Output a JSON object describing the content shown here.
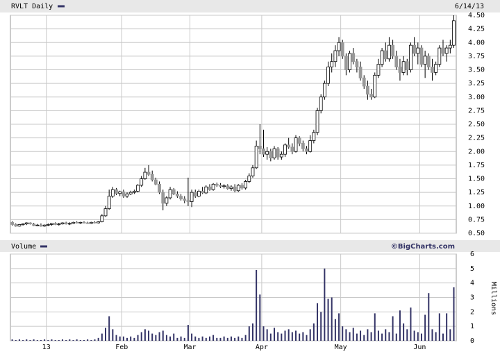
{
  "chart_data": [
    {
      "type": "candlestick",
      "title": "RVLT Daily",
      "date_label": "6/14/13",
      "up_color": "#ffffff",
      "down_color": "#999999",
      "edge_color": "#000000",
      "legend_color": "#333366",
      "ylim": [
        0.5,
        4.5
      ],
      "yticks": [
        {
          "value": 0.5,
          "label": "0.50"
        },
        {
          "value": 0.75,
          "label": "0.75"
        },
        {
          "value": 1,
          "label": "1.00"
        },
        {
          "value": 1.25,
          "label": "1.25"
        },
        {
          "value": 1.5,
          "label": "1.50"
        },
        {
          "value": 1.75,
          "label": "1.75"
        },
        {
          "value": 2,
          "label": "2.00"
        },
        {
          "value": 2.25,
          "label": "2.25"
        },
        {
          "value": 2.5,
          "label": "2.50"
        },
        {
          "value": 2.75,
          "label": "2.75"
        },
        {
          "value": 3,
          "label": "3.00"
        },
        {
          "value": 3.25,
          "label": "3.25"
        },
        {
          "value": 3.5,
          "label": "3.50"
        },
        {
          "value": 3.75,
          "label": "3.75"
        },
        {
          "value": 4,
          "label": "4.00"
        },
        {
          "value": 4.25,
          "label": "4.25"
        },
        {
          "value": 4.5,
          "label": "4.50"
        }
      ],
      "xticks": [
        10,
        31,
        50,
        70,
        92,
        114
      ],
      "grid": true,
      "ohlc": [
        [
          0.7,
          0.72,
          0.64,
          0.66
        ],
        [
          0.66,
          0.68,
          0.62,
          0.63
        ],
        [
          0.63,
          0.67,
          0.62,
          0.66
        ],
        [
          0.66,
          0.68,
          0.64,
          0.67
        ],
        [
          0.67,
          0.7,
          0.65,
          0.69
        ],
        [
          0.69,
          0.7,
          0.66,
          0.67
        ],
        [
          0.67,
          0.69,
          0.63,
          0.64
        ],
        [
          0.64,
          0.67,
          0.63,
          0.65
        ],
        [
          0.65,
          0.68,
          0.62,
          0.63
        ],
        [
          0.63,
          0.66,
          0.62,
          0.65
        ],
        [
          0.65,
          0.68,
          0.63,
          0.66
        ],
        [
          0.66,
          0.69,
          0.64,
          0.68
        ],
        [
          0.68,
          0.7,
          0.65,
          0.66
        ],
        [
          0.66,
          0.69,
          0.64,
          0.67
        ],
        [
          0.67,
          0.7,
          0.66,
          0.69
        ],
        [
          0.69,
          0.71,
          0.66,
          0.67
        ],
        [
          0.67,
          0.7,
          0.65,
          0.68
        ],
        [
          0.68,
          0.71,
          0.67,
          0.7
        ],
        [
          0.7,
          0.72,
          0.68,
          0.69
        ],
        [
          0.69,
          0.71,
          0.67,
          0.7
        ],
        [
          0.7,
          0.72,
          0.68,
          0.69
        ],
        [
          0.69,
          0.71,
          0.67,
          0.68
        ],
        [
          0.68,
          0.71,
          0.67,
          0.7
        ],
        [
          0.7,
          0.72,
          0.68,
          0.69
        ],
        [
          0.69,
          0.72,
          0.68,
          0.71
        ],
        [
          0.71,
          0.85,
          0.7,
          0.82
        ],
        [
          0.82,
          1.0,
          0.8,
          0.95
        ],
        [
          0.95,
          1.3,
          0.93,
          1.18
        ],
        [
          1.18,
          1.35,
          1.15,
          1.3
        ],
        [
          1.3,
          1.33,
          1.2,
          1.23
        ],
        [
          1.23,
          1.28,
          1.18,
          1.26
        ],
        [
          1.26,
          1.3,
          1.15,
          1.18
        ],
        [
          1.18,
          1.25,
          1.15,
          1.22
        ],
        [
          1.22,
          1.28,
          1.2,
          1.25
        ],
        [
          1.25,
          1.3,
          1.22,
          1.27
        ],
        [
          1.27,
          1.4,
          1.25,
          1.38
        ],
        [
          1.38,
          1.55,
          1.35,
          1.5
        ],
        [
          1.5,
          1.7,
          1.48,
          1.62
        ],
        [
          1.62,
          1.75,
          1.55,
          1.58
        ],
        [
          1.58,
          1.65,
          1.45,
          1.48
        ],
        [
          1.48,
          1.52,
          1.38,
          1.4
        ],
        [
          1.4,
          1.45,
          1.22,
          1.25
        ],
        [
          1.25,
          1.3,
          0.92,
          1.05
        ],
        [
          1.05,
          1.18,
          1.0,
          1.15
        ],
        [
          1.15,
          1.35,
          1.12,
          1.3
        ],
        [
          1.3,
          1.33,
          1.2,
          1.22
        ],
        [
          1.22,
          1.27,
          1.15,
          1.18
        ],
        [
          1.18,
          1.22,
          1.1,
          1.13
        ],
        [
          1.13,
          1.18,
          1.05,
          1.1
        ],
        [
          1.1,
          1.52,
          1.0,
          1.08
        ],
        [
          1.08,
          1.3,
          0.98,
          1.25
        ],
        [
          1.25,
          1.3,
          1.15,
          1.18
        ],
        [
          1.18,
          1.3,
          1.16,
          1.27
        ],
        [
          1.27,
          1.35,
          1.22,
          1.24
        ],
        [
          1.24,
          1.38,
          1.22,
          1.35
        ],
        [
          1.35,
          1.4,
          1.28,
          1.3
        ],
        [
          1.3,
          1.42,
          1.28,
          1.4
        ],
        [
          1.4,
          1.43,
          1.35,
          1.38
        ],
        [
          1.38,
          1.42,
          1.33,
          1.36
        ],
        [
          1.36,
          1.4,
          1.32,
          1.37
        ],
        [
          1.37,
          1.4,
          1.3,
          1.32
        ],
        [
          1.32,
          1.38,
          1.28,
          1.35
        ],
        [
          1.35,
          1.4,
          1.25,
          1.28
        ],
        [
          1.28,
          1.4,
          1.26,
          1.38
        ],
        [
          1.38,
          1.42,
          1.3,
          1.33
        ],
        [
          1.33,
          1.48,
          1.3,
          1.45
        ],
        [
          1.45,
          1.6,
          1.42,
          1.55
        ],
        [
          1.55,
          1.75,
          1.52,
          1.7
        ],
        [
          1.7,
          2.2,
          1.68,
          2.1
        ],
        [
          2.1,
          2.5,
          1.95,
          2.05
        ],
        [
          2.05,
          2.4,
          1.9,
          1.95
        ],
        [
          1.95,
          2.08,
          1.85,
          2.0
        ],
        [
          2.0,
          2.05,
          1.82,
          1.88
        ],
        [
          1.88,
          2.1,
          1.85,
          2.05
        ],
        [
          2.05,
          2.08,
          1.85,
          1.9
        ],
        [
          1.9,
          2.0,
          1.85,
          1.95
        ],
        [
          1.95,
          2.15,
          1.9,
          2.12
        ],
        [
          2.12,
          2.25,
          2.05,
          2.08
        ],
        [
          2.08,
          2.15,
          1.95,
          2.0
        ],
        [
          2.0,
          2.3,
          1.98,
          2.25
        ],
        [
          2.25,
          2.28,
          2.1,
          2.15
        ],
        [
          2.15,
          2.2,
          2.0,
          2.05
        ],
        [
          2.05,
          2.1,
          1.95,
          2.0
        ],
        [
          2.0,
          2.3,
          1.98,
          2.2
        ],
        [
          2.2,
          2.4,
          2.15,
          2.35
        ],
        [
          2.35,
          2.8,
          2.3,
          2.75
        ],
        [
          2.75,
          3.05,
          2.7,
          3.0
        ],
        [
          3.0,
          3.3,
          2.95,
          3.25
        ],
        [
          3.25,
          3.65,
          3.2,
          3.55
        ],
        [
          3.55,
          3.8,
          3.45,
          3.65
        ],
        [
          3.65,
          3.95,
          3.55,
          3.85
        ],
        [
          3.85,
          4.1,
          3.75,
          4.0
        ],
        [
          4.0,
          4.05,
          3.7,
          3.75
        ],
        [
          3.75,
          3.8,
          3.4,
          3.5
        ],
        [
          3.5,
          3.85,
          3.45,
          3.8
        ],
        [
          3.8,
          3.9,
          3.6,
          3.65
        ],
        [
          3.65,
          3.7,
          3.45,
          3.55
        ],
        [
          3.55,
          3.65,
          3.3,
          3.35
        ],
        [
          3.35,
          3.4,
          3.15,
          3.2
        ],
        [
          3.2,
          3.3,
          2.95,
          3.05
        ],
        [
          3.05,
          3.15,
          2.95,
          3.0
        ],
        [
          3.0,
          3.45,
          2.98,
          3.4
        ],
        [
          3.4,
          3.7,
          3.35,
          3.6
        ],
        [
          3.6,
          3.9,
          3.55,
          3.85
        ],
        [
          3.85,
          4.0,
          3.65,
          3.7
        ],
        [
          3.7,
          4.1,
          3.65,
          3.95
        ],
        [
          3.95,
          4.05,
          3.7,
          3.75
        ],
        [
          3.75,
          3.85,
          3.5,
          3.55
        ],
        [
          3.55,
          3.7,
          3.3,
          3.45
        ],
        [
          3.45,
          3.75,
          3.4,
          3.65
        ],
        [
          3.65,
          3.7,
          3.4,
          3.5
        ],
        [
          3.5,
          4.0,
          3.45,
          3.95
        ],
        [
          3.95,
          4.1,
          3.75,
          3.8
        ],
        [
          3.8,
          4.0,
          3.6,
          3.9
        ],
        [
          3.9,
          3.95,
          3.55,
          3.6
        ],
        [
          3.6,
          3.85,
          3.35,
          3.75
        ],
        [
          3.75,
          3.8,
          3.5,
          3.55
        ],
        [
          3.55,
          3.7,
          3.3,
          3.45
        ],
        [
          3.45,
          3.65,
          3.4,
          3.6
        ],
        [
          3.6,
          3.95,
          3.55,
          3.9
        ],
        [
          3.9,
          4.05,
          3.75,
          3.8
        ],
        [
          3.8,
          3.95,
          3.65,
          3.9
        ],
        [
          3.9,
          4.05,
          3.8,
          3.95
        ],
        [
          3.95,
          4.5,
          3.9,
          4.4
        ]
      ]
    },
    {
      "type": "bar",
      "title": "Volume",
      "source": "©BigCharts.com",
      "ylabel": "Millions",
      "color": "#333366",
      "legend_color": "#333366",
      "ylim": [
        0,
        6
      ],
      "yticks": [
        0,
        1,
        2,
        3,
        4,
        5,
        6
      ],
      "grid": true,
      "xticks": [
        {
          "value": 10,
          "label": "13"
        },
        {
          "value": 31,
          "label": "Feb"
        },
        {
          "value": 50,
          "label": "Mar"
        },
        {
          "value": 70,
          "label": "Apr"
        },
        {
          "value": 92,
          "label": "May"
        },
        {
          "value": 114,
          "label": "Jun"
        }
      ],
      "values": [
        0.1,
        0.05,
        0.1,
        0.05,
        0.1,
        0.05,
        0.1,
        0.05,
        0.05,
        0.1,
        0.05,
        0.1,
        0.05,
        0.05,
        0.1,
        0.05,
        0.1,
        0.05,
        0.1,
        0.05,
        0.05,
        0.1,
        0.05,
        0.1,
        0.2,
        0.5,
        0.9,
        1.7,
        0.8,
        0.4,
        0.3,
        0.3,
        0.2,
        0.3,
        0.2,
        0.4,
        0.6,
        0.8,
        0.7,
        0.5,
        0.4,
        0.6,
        0.7,
        0.4,
        0.3,
        0.5,
        0.2,
        0.3,
        0.2,
        1.1,
        0.5,
        0.3,
        0.2,
        0.3,
        0.2,
        0.3,
        0.4,
        0.2,
        0.2,
        0.3,
        0.2,
        0.3,
        0.2,
        0.3,
        0.2,
        0.4,
        1.0,
        1.2,
        4.9,
        3.2,
        1.0,
        0.8,
        0.5,
        0.9,
        0.6,
        0.5,
        0.7,
        0.8,
        0.6,
        0.7,
        0.5,
        0.6,
        0.4,
        0.8,
        1.2,
        2.6,
        2.0,
        5.0,
        2.9,
        3.0,
        1.5,
        1.9,
        1.0,
        0.8,
        0.6,
        0.9,
        0.5,
        0.7,
        0.4,
        0.8,
        0.6,
        1.9,
        0.7,
        0.5,
        0.8,
        0.6,
        1.7,
        0.5,
        2.1,
        1.2,
        0.8,
        2.3,
        0.7,
        0.6,
        0.5,
        1.8,
        3.3,
        0.8,
        0.6,
        1.9,
        0.5,
        1.9,
        0.8,
        3.7
      ]
    }
  ]
}
